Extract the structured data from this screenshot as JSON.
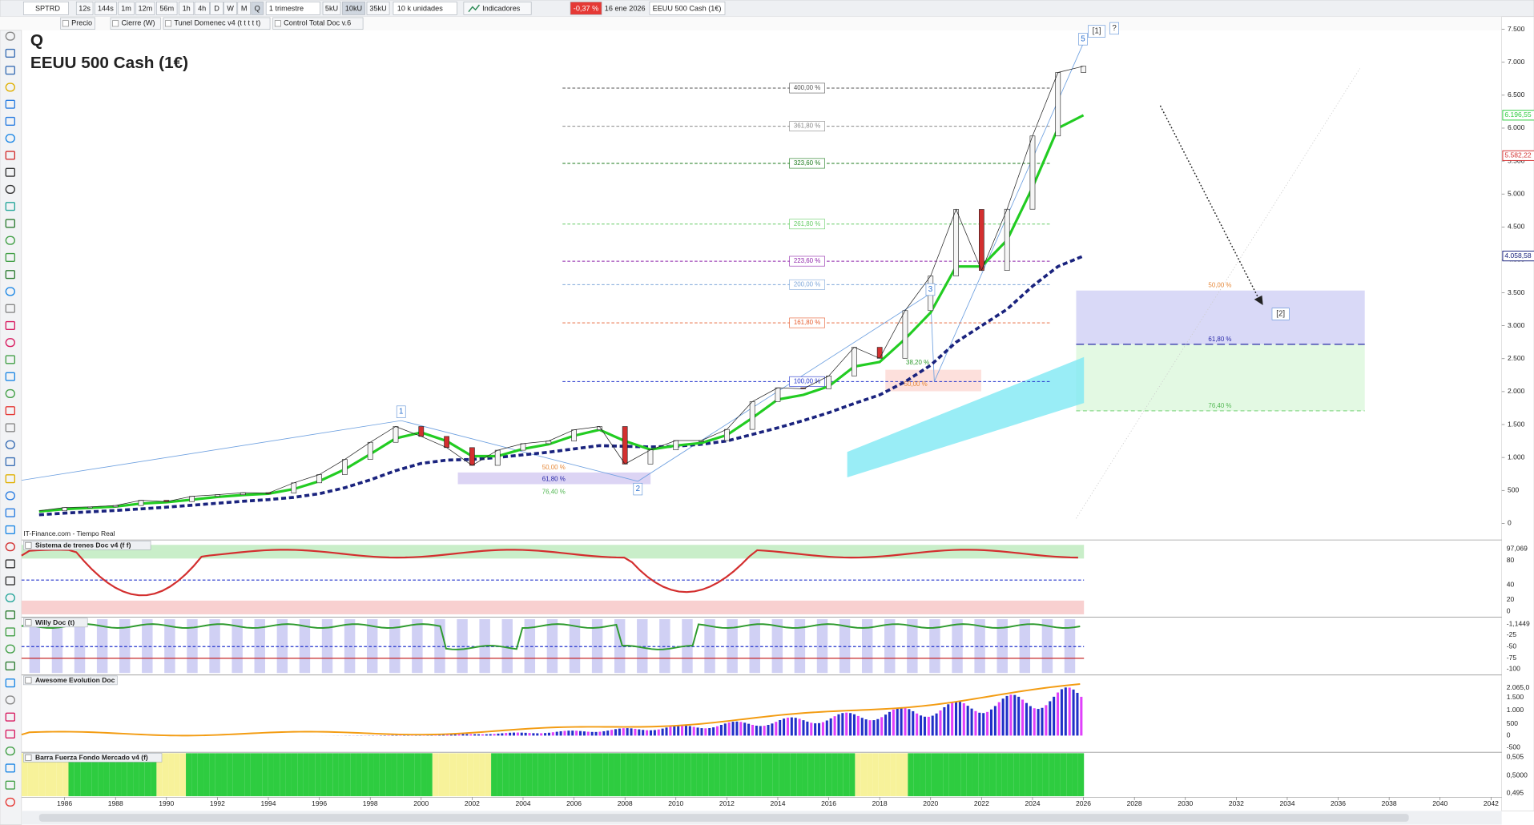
{
  "toolbar": {
    "symbol": "SPTRD",
    "timeframes": [
      "12s",
      "144s",
      "1m",
      "12m",
      "56m",
      "1h",
      "4h",
      "D",
      "W",
      "M",
      "Q"
    ],
    "period": "1 trimestre",
    "units": [
      "5kU",
      "10kU",
      "35kU"
    ],
    "units_select": "10 k unidades",
    "indicators": "Indicadores",
    "change": "-0,37 %",
    "date": "16 ene 2026",
    "instrument": "EEUU 500 Cash (1€)"
  },
  "chart_data": {
    "type": "line",
    "title": "Q",
    "subtitle": "EEUU 500 Cash (1€)",
    "source": "IT-Finance.com - Tiempo Real",
    "close_mode": "Cierre (W)",
    "x": [
      1985,
      1986,
      1987,
      1988,
      1989,
      1990,
      1991,
      1992,
      1993,
      1994,
      1995,
      1996,
      1997,
      1998,
      1999,
      2000,
      2001,
      2002,
      2003,
      2004,
      2005,
      2006,
      2007,
      2008,
      2009,
      2010,
      2011,
      2012,
      2013,
      2014,
      2015,
      2016,
      2017,
      2018,
      2019,
      2020,
      2021,
      2022,
      2023,
      2024,
      2025,
      2026
    ],
    "series": [
      {
        "name": "Precio",
        "color": "#222222",
        "values": [
          190,
          240,
          250,
          270,
          350,
          330,
          410,
          435,
          465,
          460,
          615,
          740,
          970,
          1230,
          1470,
          1320,
          1150,
          880,
          1110,
          1210,
          1250,
          1420,
          1470,
          900,
          1115,
          1257,
          1257,
          1426,
          1848,
          2058,
          2043,
          2238,
          2673,
          2506,
          3230,
          3756,
          4766,
          3839,
          4769,
          5881,
          6845,
          6940
        ]
      },
      {
        "name": "Tunel Domenec v4 (t t t t t)",
        "color": "#22cc22",
        "values": [
          180,
          215,
          235,
          255,
          300,
          320,
          360,
          400,
          430,
          450,
          520,
          640,
          820,
          1050,
          1290,
          1380,
          1250,
          1020,
          1020,
          1130,
          1200,
          1330,
          1420,
          1250,
          1120,
          1180,
          1220,
          1340,
          1600,
          1880,
          1950,
          2080,
          2380,
          2450,
          2800,
          3200,
          3900,
          3900,
          4300,
          5100,
          6000,
          6196
        ]
      },
      {
        "name": "Control Total Doc v.6",
        "color": "#1a237e",
        "values": [
          130,
          155,
          175,
          195,
          220,
          245,
          275,
          305,
          335,
          360,
          395,
          450,
          540,
          660,
          800,
          910,
          960,
          970,
          1000,
          1040,
          1080,
          1130,
          1180,
          1170,
          1160,
          1170,
          1200,
          1250,
          1350,
          1450,
          1560,
          1680,
          1820,
          1950,
          2150,
          2400,
          2750,
          3000,
          3250,
          3600,
          3900,
          4059
        ]
      }
    ],
    "xlim": [
      1984.31,
      2042.42
    ],
    "xticks": [
      1986,
      1988,
      1990,
      1992,
      1994,
      1996,
      1998,
      2000,
      2002,
      2004,
      2006,
      2008,
      2010,
      2012,
      2014,
      2016,
      2018,
      2020,
      2022,
      2024,
      2026,
      2028,
      2030,
      2032,
      2034,
      2036,
      2038,
      2040,
      2042
    ],
    "ylim": [
      -193,
      7485
    ],
    "yticks": [
      0,
      500,
      {
        "value": 1000,
        "label": "1.000"
      },
      {
        "value": 1500,
        "label": "1.500"
      },
      {
        "value": 2000,
        "label": "2.000"
      },
      {
        "value": 2500,
        "label": "2.500"
      },
      {
        "value": 3000,
        "label": "3.000"
      },
      {
        "value": 3500,
        "label": "3.500"
      },
      {
        "value": 4000,
        "label": "4.000"
      },
      {
        "value": 4500,
        "label": "4.500"
      },
      {
        "value": 5000,
        "label": "5.000"
      },
      {
        "value": 5500,
        "label": "5.500"
      },
      {
        "value": 6000,
        "label": "6.000"
      },
      {
        "value": 6500,
        "label": "6.500"
      },
      {
        "value": 7000,
        "label": "7.000"
      },
      {
        "value": 7500,
        "label": "7.500"
      }
    ],
    "price_markers": [
      {
        "value": 6196.55,
        "label": "6.196,55",
        "color": "#2ecc40"
      },
      {
        "value": 5582.22,
        "label": "5.582,22",
        "color": "#d32f2f"
      },
      {
        "value": 4058.58,
        "label": "4.058,58",
        "color": "#1a237e"
      }
    ],
    "fib_levels": [
      {
        "label": "400,00 %",
        "value": 6608,
        "color": "#555555"
      },
      {
        "label": "361,80 %",
        "value": 6029,
        "color": "#888888"
      },
      {
        "label": "323,60 %",
        "value": 5465,
        "color": "#1b7a1b"
      },
      {
        "label": "261,80 %",
        "value": 4544,
        "color": "#66cc66"
      },
      {
        "label": "223,60 %",
        "value": 3980,
        "color": "#8e24aa"
      },
      {
        "label": "200,00 %",
        "value": 3624,
        "color": "#7fa7d9"
      },
      {
        "label": "161,80 %",
        "value": 3044,
        "color": "#e65c2e"
      },
      {
        "label": "100,00 %",
        "value": 2153,
        "color": "#2233cc"
      }
    ],
    "waves": [
      "1",
      "2",
      "3",
      "5"
    ],
    "targets": [
      "[1]",
      "?",
      "[2]"
    ],
    "zone_levels": [
      "50,00 %",
      "61,80 %",
      "76,40 %"
    ],
    "small_fibs": [
      "50,00 %",
      "61,80 %",
      "76,40 %"
    ],
    "mid_fibs": [
      "38,20 %",
      "50,00 %"
    ]
  },
  "panels": [
    {
      "title": "Sistema de trenes Doc v4 (f f)",
      "labels": [
        "97,069",
        "80",
        "40",
        "20",
        "0"
      ]
    },
    {
      "title": "Willy Doc (t)",
      "labels": [
        "-1,1449",
        "-25",
        "-50",
        "-75",
        "-100"
      ]
    },
    {
      "title": "Awesome Evolution Doc",
      "labels": [
        "2.065,0",
        "1.500",
        "1.000",
        "500",
        "0",
        "-500"
      ]
    },
    {
      "title": "Barra Fuerza Fondo Mercado v4 (f)",
      "labels": [
        "0,505",
        "0,5000",
        "0,495"
      ]
    }
  ]
}
